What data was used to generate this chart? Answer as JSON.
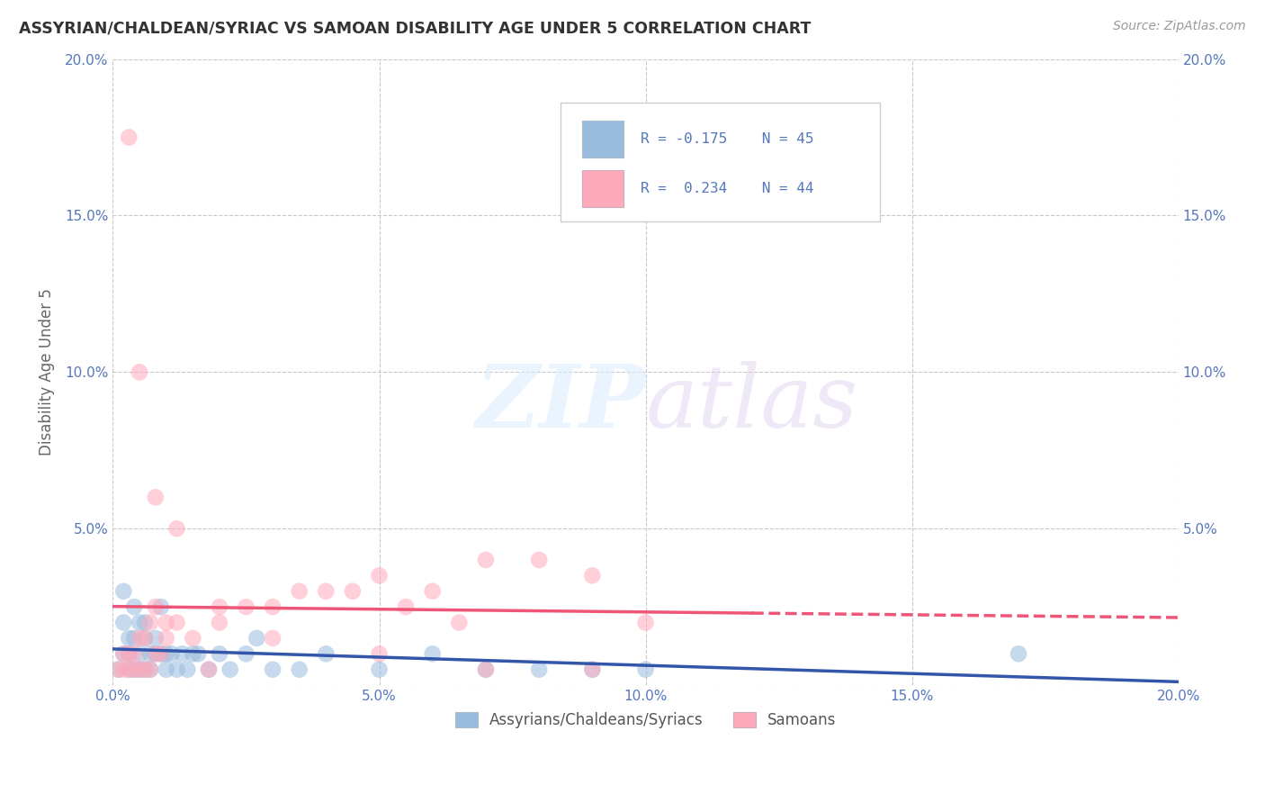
{
  "title": "ASSYRIAN/CHALDEAN/SYRIAC VS SAMOAN DISABILITY AGE UNDER 5 CORRELATION CHART",
  "source": "Source: ZipAtlas.com",
  "ylabel": "Disability Age Under 5",
  "xlim": [
    0.0,
    0.2
  ],
  "ylim": [
    0.0,
    0.2
  ],
  "x_ticks": [
    0.0,
    0.05,
    0.1,
    0.15,
    0.2
  ],
  "y_ticks": [
    0.0,
    0.05,
    0.1,
    0.15,
    0.2
  ],
  "color_blue": "#99BBDD",
  "color_pink": "#FFAABB",
  "color_blue_line": "#3355AA",
  "color_pink_line": "#EE5577",
  "color_title": "#333333",
  "color_source": "#999999",
  "color_axis": "#5577BB",
  "blue_R": -0.175,
  "blue_N": 45,
  "pink_R": 0.234,
  "pink_N": 44,
  "blue_x": [
    0.001,
    0.002,
    0.002,
    0.003,
    0.003,
    0.003,
    0.004,
    0.004,
    0.005,
    0.005,
    0.005,
    0.006,
    0.006,
    0.007,
    0.007,
    0.008,
    0.008,
    0.009,
    0.01,
    0.01,
    0.011,
    0.012,
    0.013,
    0.014,
    0.015,
    0.016,
    0.018,
    0.02,
    0.022,
    0.025,
    0.027,
    0.03,
    0.035,
    0.04,
    0.05,
    0.06,
    0.07,
    0.08,
    0.09,
    0.1,
    0.002,
    0.004,
    0.006,
    0.009,
    0.17
  ],
  "blue_y": [
    0.005,
    0.01,
    0.02,
    0.005,
    0.01,
    0.015,
    0.005,
    0.015,
    0.005,
    0.01,
    0.02,
    0.005,
    0.015,
    0.005,
    0.01,
    0.01,
    0.015,
    0.01,
    0.005,
    0.01,
    0.01,
    0.005,
    0.01,
    0.005,
    0.01,
    0.01,
    0.005,
    0.01,
    0.005,
    0.01,
    0.015,
    0.005,
    0.005,
    0.01,
    0.005,
    0.01,
    0.005,
    0.005,
    0.005,
    0.005,
    0.03,
    0.025,
    0.02,
    0.025,
    0.01
  ],
  "pink_x": [
    0.001,
    0.002,
    0.002,
    0.003,
    0.003,
    0.004,
    0.004,
    0.005,
    0.005,
    0.006,
    0.006,
    0.007,
    0.007,
    0.008,
    0.008,
    0.009,
    0.01,
    0.01,
    0.012,
    0.015,
    0.018,
    0.02,
    0.025,
    0.03,
    0.035,
    0.04,
    0.045,
    0.05,
    0.055,
    0.06,
    0.065,
    0.07,
    0.08,
    0.09,
    0.1,
    0.003,
    0.005,
    0.008,
    0.012,
    0.02,
    0.03,
    0.05,
    0.07,
    0.09
  ],
  "pink_y": [
    0.005,
    0.005,
    0.01,
    0.005,
    0.01,
    0.005,
    0.01,
    0.005,
    0.015,
    0.005,
    0.015,
    0.005,
    0.02,
    0.01,
    0.025,
    0.01,
    0.015,
    0.02,
    0.02,
    0.015,
    0.005,
    0.02,
    0.025,
    0.025,
    0.03,
    0.03,
    0.03,
    0.035,
    0.025,
    0.03,
    0.02,
    0.04,
    0.04,
    0.035,
    0.02,
    0.175,
    0.1,
    0.06,
    0.05,
    0.025,
    0.015,
    0.01,
    0.005,
    0.005
  ]
}
